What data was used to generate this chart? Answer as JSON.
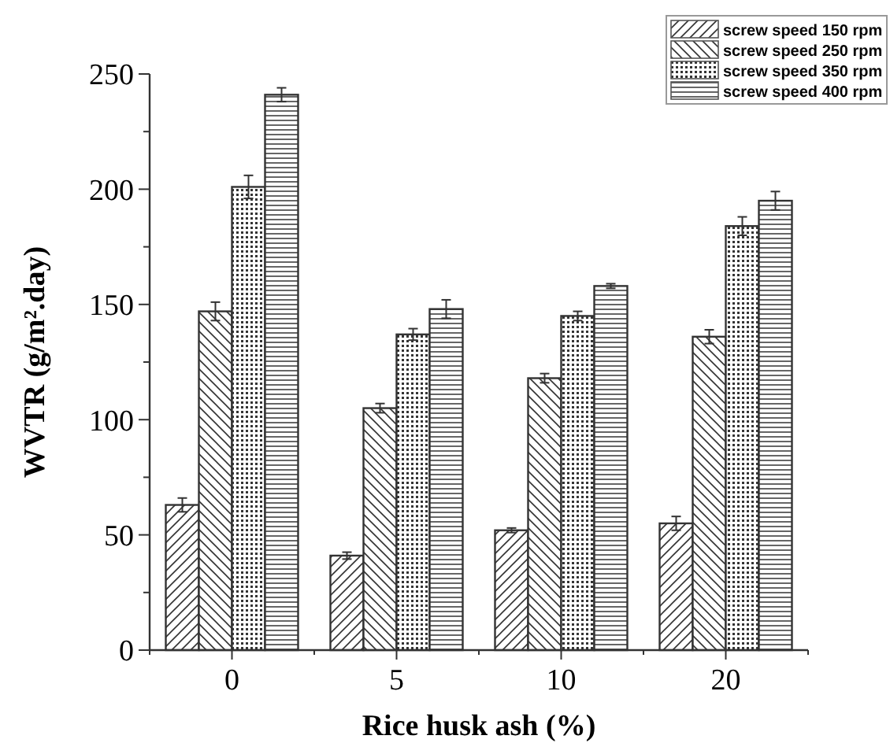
{
  "chart_data": {
    "type": "bar",
    "xlabel": "Rice husk ash (%)",
    "ylabel": "WVTR (g/m².day)",
    "categories": [
      "0",
      "5",
      "10",
      "20"
    ],
    "series": [
      {
        "name": "screw speed 150 rpm",
        "color": "#333333",
        "values": [
          63,
          41,
          52,
          55
        ],
        "errors": [
          3,
          1.5,
          1,
          3
        ]
      },
      {
        "name": "screw speed 250 rpm",
        "color": "#333333",
        "values": [
          147,
          105,
          118,
          136
        ],
        "errors": [
          4,
          2,
          2,
          3
        ]
      },
      {
        "name": "screw speed 350 rpm",
        "color": "#333333",
        "values": [
          201,
          137,
          145,
          184
        ],
        "errors": [
          5,
          2.5,
          2,
          4
        ]
      },
      {
        "name": "screw speed 400 rpm",
        "color": "#333333",
        "values": [
          241,
          148,
          158,
          195
        ],
        "errors": [
          3,
          4,
          1,
          4
        ]
      }
    ],
    "ylim": [
      0,
      250
    ],
    "yticks": [
      0,
      {
        "value": 25,
        "label": null
      },
      50,
      {
        "value": 75,
        "label": null
      },
      100,
      {
        "value": 125,
        "label": null
      },
      150,
      {
        "value": 175,
        "label": null
      },
      200,
      {
        "value": 225,
        "label": null
      },
      250
    ],
    "grid": false,
    "legend": "top right"
  }
}
